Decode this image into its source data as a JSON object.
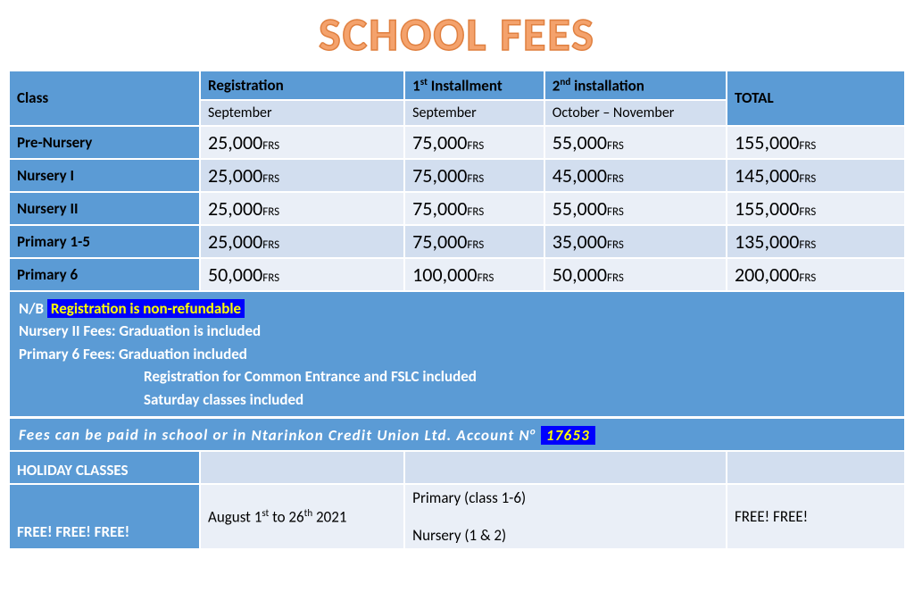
{
  "title": "SCHOOL FEES",
  "colors": {
    "title_fill": "#f4a26c",
    "title_stroke": "#e08040",
    "header_dark": "#5b9bd5",
    "row_light": "#eaeff7",
    "row_alt": "#d2deef",
    "highlight_bg": "#0000ff",
    "highlight_fg": "#ffff00",
    "border": "#ffffff"
  },
  "headers": {
    "class": "Class",
    "registration": "Registration",
    "install1_html": "1<sup>st</sup> Installment",
    "install2_html": "2<sup>nd</sup> installation",
    "total": "TOTAL",
    "reg_sub": "September",
    "i1_sub": "September",
    "i2_sub": "October – November"
  },
  "currency_suffix": "FRS",
  "rows": [
    {
      "class": "Pre-Nursery",
      "reg": "25,000",
      "i1": "75,000",
      "i2": "55,000",
      "total": "155,000"
    },
    {
      "class": "Nursery I",
      "reg": "25,000",
      "i1": "75,000",
      "i2": "45,000",
      "total": "145,000"
    },
    {
      "class": "Nursery II",
      "reg": "25,000",
      "i1": "75,000",
      "i2": "55,000",
      "total": "155,000"
    },
    {
      "class": "Primary 1-5",
      "reg": "25,000",
      "i1": "75,000",
      "i2": "35,000",
      "total": "135,000"
    },
    {
      "class": "Primary 6",
      "reg": "50,000",
      "i1": "100,000",
      "i2": "50,000",
      "total": "200,000"
    }
  ],
  "notes": {
    "nb_prefix": "N/B ",
    "nonrefund": "Registration is non-refundable",
    "n2": "Nursery II Fees: Graduation is included",
    "p6": "Primary 6 Fees: Graduation included",
    "common": "Registration for Common Entrance and FSLC included",
    "saturday": "Saturday classes included"
  },
  "payment": {
    "text_prefix": "Fees can be paid in school or in ",
    "union_html": "Ntarinkon Credit Union Ltd. Account N<sup>o</sup> ",
    "account": "17653"
  },
  "holiday": {
    "label": "HOLIDAY CLASSES",
    "free3": "FREE! FREE! FREE!",
    "dates_html": "August 1<sup>st</sup> to 26<sup>th</sup> 2021",
    "primary": "Primary (class 1-6)",
    "nursery": "Nursery (1 & 2)",
    "free2": "FREE! FREE!"
  }
}
